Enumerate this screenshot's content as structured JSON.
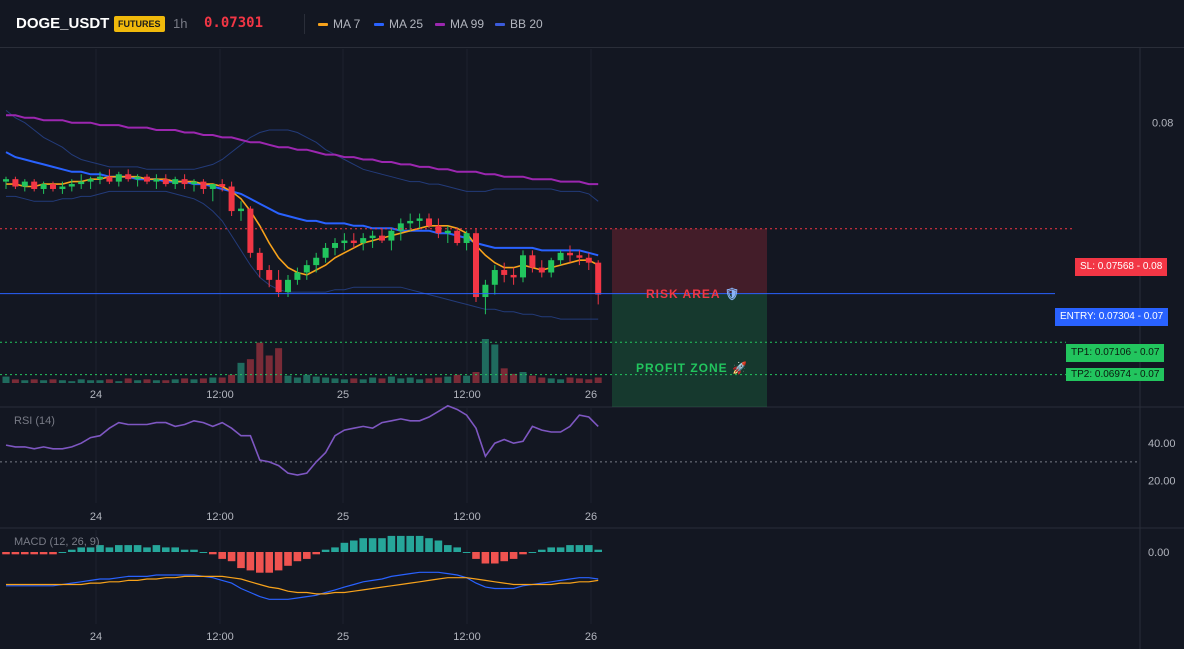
{
  "header": {
    "symbol": "DOGE_USDT",
    "badge": "FUTURES",
    "timeframe": "1h",
    "price": "0.07301",
    "legend": [
      {
        "label": "MA 7",
        "color": "#f7a21b"
      },
      {
        "label": "MA 25",
        "color": "#2962ff"
      },
      {
        "label": "MA 99",
        "color": "#9c27b0"
      },
      {
        "label": "BB 20",
        "color": "#1e3a8a"
      }
    ]
  },
  "colors": {
    "up": "#22c55e",
    "down": "#f23645",
    "vol_up": "#1f6b5e",
    "vol_down": "#7a2b37",
    "ma7": "#f7a21b",
    "ma25": "#2962ff",
    "ma99": "#9c27b0",
    "bb": "#233b7a",
    "rsi": "#7e57c2",
    "macd_line": "#2962ff",
    "signal_line": "#f7a21b",
    "hist_up": "#26a69a",
    "hist_down": "#ef5350"
  },
  "levels": {
    "sl": {
      "label": "SL: 0.07568",
      "axis": "0.08",
      "value": 0.07568
    },
    "entry": {
      "label": "ENTRY: 0.07304",
      "axis": "0.07",
      "value": 0.07304
    },
    "tp1": {
      "label": "TP1: 0.07106",
      "axis": "0.07",
      "value": 0.07106
    },
    "tp2": {
      "label": "TP2: 0.06974",
      "axis": "0.07",
      "value": 0.06974
    }
  },
  "zones": {
    "risk": "RISK AREA",
    "profit": "PROFIT ZONE"
  },
  "price_axis": {
    "tick": "0.08",
    "tick_value": 0.08
  },
  "x_labels": [
    "24",
    "12:00",
    "25",
    "12:00",
    "26"
  ],
  "rsi": {
    "title": "RSI (14)",
    "ticks": [
      "40.00",
      "20.00"
    ],
    "tick_values": [
      40,
      20
    ],
    "midline": 30
  },
  "macd": {
    "title": "MACD (12, 26, 9)",
    "ticks": [
      "0.00"
    ]
  },
  "chart_data": {
    "type": "candlestick",
    "x_labels": [
      "24",
      "12:00",
      "25",
      "12:00",
      "26"
    ],
    "ylim": [
      0.0694,
      0.083
    ],
    "candles": [
      [
        0.0776,
        0.0778,
        0.0773,
        0.0777
      ],
      [
        0.0777,
        0.0778,
        0.0773,
        0.0774
      ],
      [
        0.0774,
        0.0777,
        0.0772,
        0.0776
      ],
      [
        0.0776,
        0.0777,
        0.0772,
        0.0773
      ],
      [
        0.0773,
        0.0776,
        0.0771,
        0.0775
      ],
      [
        0.0775,
        0.0776,
        0.0772,
        0.0773
      ],
      [
        0.0773,
        0.0776,
        0.0771,
        0.0774
      ],
      [
        0.0774,
        0.0777,
        0.0772,
        0.0775
      ],
      [
        0.0775,
        0.0779,
        0.0773,
        0.0776
      ],
      [
        0.0776,
        0.0778,
        0.0773,
        0.0777
      ],
      [
        0.0777,
        0.078,
        0.0775,
        0.0778
      ],
      [
        0.0778,
        0.0781,
        0.0775,
        0.0776
      ],
      [
        0.0776,
        0.078,
        0.0774,
        0.0779
      ],
      [
        0.0779,
        0.0781,
        0.0776,
        0.0777
      ],
      [
        0.0777,
        0.0779,
        0.0774,
        0.0778
      ],
      [
        0.0778,
        0.0779,
        0.0775,
        0.0776
      ],
      [
        0.0776,
        0.0779,
        0.0773,
        0.0777
      ],
      [
        0.0777,
        0.0779,
        0.0774,
        0.0775
      ],
      [
        0.0775,
        0.0778,
        0.0773,
        0.0777
      ],
      [
        0.0777,
        0.0779,
        0.0773,
        0.0775
      ],
      [
        0.0775,
        0.0777,
        0.0772,
        0.0776
      ],
      [
        0.0776,
        0.0777,
        0.0771,
        0.0773
      ],
      [
        0.0773,
        0.0775,
        0.0768,
        0.0775
      ],
      [
        0.0775,
        0.0777,
        0.0772,
        0.0774
      ],
      [
        0.0774,
        0.0776,
        0.0762,
        0.0764
      ],
      [
        0.0764,
        0.0768,
        0.076,
        0.0765
      ],
      [
        0.0765,
        0.0766,
        0.0745,
        0.0747
      ],
      [
        0.0747,
        0.0749,
        0.0737,
        0.074
      ],
      [
        0.074,
        0.0742,
        0.0733,
        0.0736
      ],
      [
        0.0736,
        0.074,
        0.0729,
        0.0731
      ],
      [
        0.0731,
        0.0738,
        0.0729,
        0.0736
      ],
      [
        0.0736,
        0.0741,
        0.0734,
        0.0739
      ],
      [
        0.0739,
        0.0744,
        0.0736,
        0.0742
      ],
      [
        0.0742,
        0.0747,
        0.0739,
        0.0745
      ],
      [
        0.0745,
        0.0751,
        0.0743,
        0.0749
      ],
      [
        0.0749,
        0.0753,
        0.0746,
        0.0751
      ],
      [
        0.0751,
        0.0755,
        0.0748,
        0.0752
      ],
      [
        0.0752,
        0.0755,
        0.0749,
        0.0751
      ],
      [
        0.0751,
        0.0755,
        0.0748,
        0.0753
      ],
      [
        0.0753,
        0.0756,
        0.0749,
        0.0754
      ],
      [
        0.0754,
        0.0757,
        0.0751,
        0.0752
      ],
      [
        0.0752,
        0.0757,
        0.0748,
        0.0756
      ],
      [
        0.0756,
        0.0761,
        0.0752,
        0.0759
      ],
      [
        0.0759,
        0.0763,
        0.0756,
        0.076
      ],
      [
        0.076,
        0.0763,
        0.0757,
        0.0761
      ],
      [
        0.0761,
        0.0763,
        0.0757,
        0.0758
      ],
      [
        0.0758,
        0.0761,
        0.0753,
        0.0755
      ],
      [
        0.0755,
        0.0758,
        0.0751,
        0.0756
      ],
      [
        0.0756,
        0.0757,
        0.075,
        0.0751
      ],
      [
        0.0751,
        0.0756,
        0.0748,
        0.0755
      ],
      [
        0.0755,
        0.0757,
        0.0727,
        0.0729
      ],
      [
        0.0729,
        0.0736,
        0.0722,
        0.0734
      ],
      [
        0.0734,
        0.0742,
        0.073,
        0.074
      ],
      [
        0.074,
        0.0743,
        0.0735,
        0.0738
      ],
      [
        0.0738,
        0.0741,
        0.0734,
        0.0737
      ],
      [
        0.0737,
        0.0748,
        0.0735,
        0.0746
      ],
      [
        0.0746,
        0.0748,
        0.0739,
        0.0741
      ],
      [
        0.0741,
        0.0744,
        0.0737,
        0.0739
      ],
      [
        0.0739,
        0.0745,
        0.0737,
        0.0744
      ],
      [
        0.0744,
        0.0748,
        0.0742,
        0.0747
      ],
      [
        0.0747,
        0.075,
        0.0743,
        0.0746
      ],
      [
        0.0746,
        0.0748,
        0.0742,
        0.0745
      ],
      [
        0.0745,
        0.0747,
        0.074,
        0.0743
      ],
      [
        0.0743,
        0.0744,
        0.0726,
        0.073
      ]
    ],
    "volume": [
      7,
      4,
      3,
      4,
      3,
      4,
      3,
      2,
      4,
      3,
      3,
      4,
      2,
      5,
      3,
      4,
      3,
      3,
      4,
      5,
      4,
      5,
      6,
      6,
      9,
      22,
      26,
      44,
      30,
      38,
      8,
      6,
      9,
      7,
      6,
      5,
      4,
      5,
      4,
      6,
      5,
      7,
      5,
      6,
      4,
      5,
      6,
      7,
      9,
      8,
      12,
      48,
      42,
      16,
      10,
      12,
      8,
      6,
      5,
      4,
      6,
      5,
      4,
      6
    ],
    "ma7": [
      0.0775,
      0.0775,
      0.0774,
      0.0774,
      0.0775,
      0.0775,
      0.0775,
      0.0776,
      0.0776,
      0.0777,
      0.0777,
      0.0778,
      0.0778,
      0.0778,
      0.0778,
      0.0777,
      0.0777,
      0.0777,
      0.0776,
      0.0776,
      0.0776,
      0.0775,
      0.0775,
      0.0774,
      0.0772,
      0.0769,
      0.0764,
      0.0758,
      0.0751,
      0.0745,
      0.0741,
      0.0739,
      0.0738,
      0.074,
      0.0742,
      0.0745,
      0.0747,
      0.0749,
      0.0751,
      0.0752,
      0.0753,
      0.0754,
      0.0755,
      0.0756,
      0.0757,
      0.0758,
      0.0758,
      0.0758,
      0.0757,
      0.0755,
      0.075,
      0.0746,
      0.0743,
      0.0741,
      0.0741,
      0.0742,
      0.0741,
      0.074,
      0.0741,
      0.0742,
      0.0743,
      0.0744,
      0.0744,
      0.0742
    ],
    "ma25": [
      0.0788,
      0.0786,
      0.0785,
      0.0784,
      0.0783,
      0.0782,
      0.0781,
      0.078,
      0.078,
      0.0779,
      0.0779,
      0.0778,
      0.0778,
      0.0778,
      0.0777,
      0.0777,
      0.0777,
      0.0776,
      0.0776,
      0.0776,
      0.0775,
      0.0775,
      0.0774,
      0.0773,
      0.0772,
      0.0771,
      0.0769,
      0.0767,
      0.0765,
      0.0763,
      0.0762,
      0.0761,
      0.076,
      0.076,
      0.0759,
      0.0759,
      0.0759,
      0.0758,
      0.0758,
      0.0757,
      0.0757,
      0.0757,
      0.0756,
      0.0756,
      0.0756,
      0.0756,
      0.0755,
      0.0755,
      0.0754,
      0.0753,
      0.0751,
      0.075,
      0.0749,
      0.0749,
      0.0749,
      0.0749,
      0.0749,
      0.0748,
      0.0748,
      0.0748,
      0.0748,
      0.0748,
      0.0747,
      0.0746
    ],
    "ma99": [
      0.0803,
      0.0803,
      0.0802,
      0.0802,
      0.0801,
      0.0801,
      0.0801,
      0.08,
      0.08,
      0.08,
      0.0799,
      0.0799,
      0.0799,
      0.0798,
      0.0798,
      0.0798,
      0.0797,
      0.0797,
      0.0797,
      0.0796,
      0.0796,
      0.0795,
      0.0795,
      0.0794,
      0.0794,
      0.0793,
      0.0792,
      0.0792,
      0.0791,
      0.079,
      0.079,
      0.0789,
      0.0789,
      0.0788,
      0.0787,
      0.0787,
      0.0786,
      0.0786,
      0.0785,
      0.0785,
      0.0784,
      0.0784,
      0.0783,
      0.0783,
      0.0782,
      0.0782,
      0.0781,
      0.0781,
      0.078,
      0.078,
      0.078,
      0.0779,
      0.0779,
      0.0778,
      0.0778,
      0.0778,
      0.0777,
      0.0777,
      0.0777,
      0.0776,
      0.0776,
      0.0776,
      0.0775,
      0.0775
    ],
    "bb_upper": [
      0.0805,
      0.0802,
      0.08,
      0.0797,
      0.0794,
      0.0792,
      0.079,
      0.0787,
      0.0785,
      0.0784,
      0.0783,
      0.0782,
      0.0782,
      0.0782,
      0.0782,
      0.0781,
      0.0781,
      0.0781,
      0.0781,
      0.0781,
      0.0781,
      0.0782,
      0.0783,
      0.0785,
      0.0788,
      0.0791,
      0.0794,
      0.0796,
      0.0797,
      0.0797,
      0.0797,
      0.0796,
      0.0794,
      0.0792,
      0.0789,
      0.0787,
      0.0785,
      0.0783,
      0.0781,
      0.078,
      0.0779,
      0.0778,
      0.0777,
      0.0776,
      0.0776,
      0.0775,
      0.0775,
      0.0774,
      0.0773,
      0.0772,
      0.0772,
      0.0772,
      0.0773,
      0.0773,
      0.0773,
      0.0773,
      0.0773,
      0.0773,
      0.0773,
      0.0772,
      0.0772,
      0.0772,
      0.0771,
      0.0768
    ],
    "bb_lower": [
      0.077,
      0.077,
      0.0769,
      0.0768,
      0.0768,
      0.0768,
      0.0769,
      0.0769,
      0.077,
      0.077,
      0.0771,
      0.0772,
      0.0772,
      0.0772,
      0.0772,
      0.0772,
      0.0772,
      0.0772,
      0.0771,
      0.077,
      0.0769,
      0.0767,
      0.0764,
      0.076,
      0.0754,
      0.0748,
      0.0742,
      0.0737,
      0.0734,
      0.0732,
      0.0731,
      0.0731,
      0.0731,
      0.0731,
      0.0731,
      0.0732,
      0.0732,
      0.0733,
      0.0733,
      0.0733,
      0.0733,
      0.0733,
      0.0733,
      0.0732,
      0.0731,
      0.073,
      0.0729,
      0.0728,
      0.0727,
      0.0726,
      0.0725,
      0.0724,
      0.0724,
      0.0723,
      0.0723,
      0.0722,
      0.0722,
      0.0721,
      0.0721,
      0.072,
      0.072,
      0.072,
      0.072,
      0.072
    ],
    "rsi": [
      39,
      38,
      38,
      37,
      38,
      37,
      37,
      38,
      40,
      43,
      44,
      48,
      51,
      50,
      50,
      50,
      51,
      51,
      49,
      50,
      52,
      51,
      49,
      51,
      48,
      44,
      44,
      31,
      30,
      28,
      24,
      23,
      24,
      30,
      35,
      44,
      47,
      48,
      49,
      48,
      51,
      52,
      53,
      52,
      52,
      54,
      57,
      60,
      58,
      55,
      48,
      33,
      40,
      42,
      40,
      41,
      49,
      47,
      46,
      46,
      49,
      55,
      54,
      49
    ],
    "macd": [
      -8,
      -8,
      -8,
      -8,
      -8,
      -8,
      -7,
      -6,
      -5,
      -4,
      -3,
      -3,
      -2,
      -1,
      -1,
      -1,
      0,
      0,
      0,
      0,
      0,
      -1,
      -2,
      -4,
      -6,
      -10,
      -13,
      -16,
      -18,
      -18,
      -18,
      -17,
      -16,
      -15,
      -13,
      -11,
      -9,
      -7,
      -5,
      -4,
      -3,
      -1,
      0,
      1,
      2,
      2,
      2,
      1,
      0,
      -2,
      -6,
      -9,
      -10,
      -10,
      -10,
      -8,
      -7,
      -6,
      -5,
      -4,
      -3,
      -2,
      -2,
      -3
    ],
    "signal": [
      -7,
      -7,
      -7,
      -7,
      -7,
      -7,
      -7,
      -7,
      -7,
      -6,
      -6,
      -5,
      -5,
      -4,
      -4,
      -3,
      -3,
      -2,
      -2,
      -1,
      -1,
      -1,
      -1,
      -1,
      -2,
      -3,
      -5,
      -7,
      -9,
      -10,
      -12,
      -13,
      -13,
      -14,
      -14,
      -13,
      -13,
      -12,
      -11,
      -10,
      -9,
      -8,
      -7,
      -6,
      -5,
      -4,
      -3,
      -2,
      -2,
      -2,
      -3,
      -4,
      -5,
      -6,
      -7,
      -7,
      -7,
      -7,
      -7,
      -6,
      -6,
      -5,
      -5,
      -4
    ],
    "histogram": [
      -1,
      -1,
      -1,
      -1,
      -1,
      -1,
      0,
      1,
      2,
      2,
      3,
      2,
      3,
      3,
      3,
      2,
      3,
      2,
      2,
      1,
      1,
      0,
      -1,
      -3,
      -4,
      -7,
      -8,
      -9,
      -9,
      -8,
      -6,
      -4,
      -3,
      -1,
      1,
      2,
      4,
      5,
      6,
      6,
      6,
      7,
      7,
      7,
      7,
      6,
      5,
      3,
      2,
      0,
      -3,
      -5,
      -5,
      -4,
      -3,
      -1,
      0,
      1,
      2,
      2,
      3,
      3,
      3,
      1
    ]
  }
}
